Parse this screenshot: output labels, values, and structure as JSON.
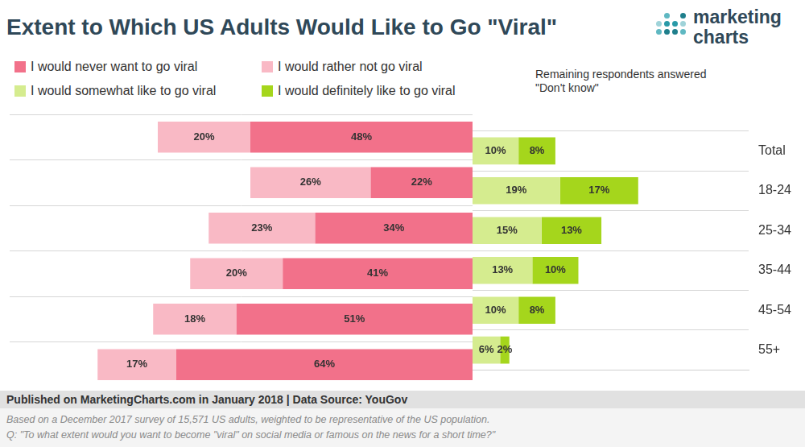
{
  "title": "Extent to Which US Adults Would Like to Go \"Viral\"",
  "logo": [
    "marketing",
    "charts"
  ],
  "annotation": "Remaining respondents answered \"Don't know\"",
  "footer": "Published on MarketingCharts.com in January 2018 | Data Source: YouGov",
  "notes": [
    "Based on a December 2017 survey of 15,571 US adults, weighted to be representative of the US population.",
    "Q: \"To what extent would you want to become \"viral\" on social media or famous on the news for a short time?\""
  ],
  "chart_data": [
    {
      "type": "bar",
      "orientation": "horizontal",
      "stacked": true,
      "data_labels": true,
      "grid": true,
      "legend": "top-left",
      "tick_labels": false,
      "categories": [
        "Total",
        "18-24",
        "25-34",
        "35-44",
        "45-54",
        "55+"
      ],
      "xlim": [
        0,
        100
      ],
      "series": [
        {
          "name": "I would never want to go viral",
          "color": "#f2718a",
          "values": [
            48,
            22,
            34,
            41,
            51,
            64
          ],
          "value_labels": [
            "48%",
            "22%",
            "34%",
            "41%",
            "51%",
            "64%"
          ]
        },
        {
          "name": "I would rather not go viral",
          "color": "#f9b9c5",
          "values": [
            20,
            26,
            23,
            20,
            18,
            17
          ],
          "value_labels": [
            "20%",
            "26%",
            "23%",
            "20%",
            "18%",
            "17%"
          ]
        }
      ]
    },
    {
      "type": "bar",
      "orientation": "horizontal",
      "stacked": true,
      "data_labels": true,
      "grid": true,
      "legend": "top-left",
      "tick_labels": "y",
      "categories": [
        "Total",
        "18-24",
        "25-34",
        "35-44",
        "45-54",
        "55+"
      ],
      "xlim": [
        0,
        60
      ],
      "series": [
        {
          "name": "I would somewhat like to go viral",
          "color": "#d5ec8f",
          "values": [
            10,
            19,
            15,
            13,
            10,
            6
          ],
          "value_labels": [
            "10%",
            "19%",
            "15%",
            "13%",
            "10%",
            "6%"
          ]
        },
        {
          "name": "I would definitely like to go viral",
          "color": "#a5d61c",
          "values": [
            8,
            17,
            13,
            10,
            8,
            2
          ],
          "value_labels": [
            "8%",
            "17%",
            "13%",
            "10%",
            "8%",
            "2%"
          ]
        }
      ]
    }
  ]
}
